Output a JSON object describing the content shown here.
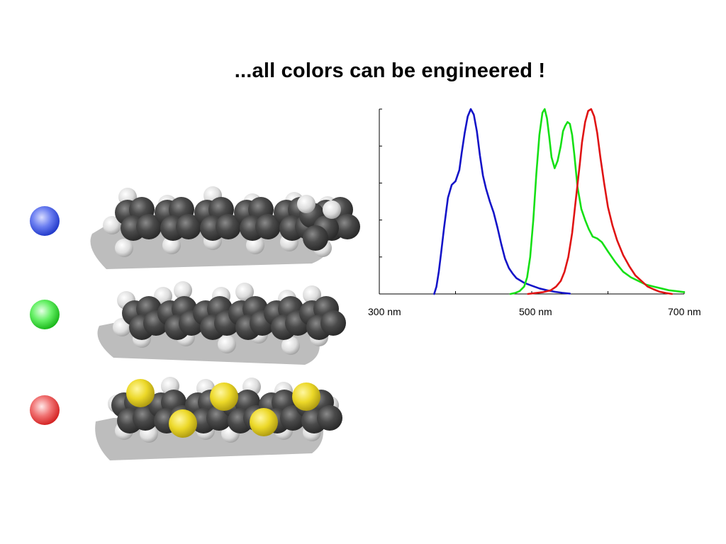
{
  "slide": {
    "title": "...all colors can be engineered !"
  },
  "colors": {
    "blue": "#1414c8",
    "green": "#16e016",
    "red": "#e01414",
    "sulfur": "#ecd828",
    "carbon": "#4a4a4a",
    "hydrogen": "#e6e6e6"
  },
  "molecules": [
    {
      "emission_color": "blue",
      "atoms": "carbon-hydrogen"
    },
    {
      "emission_color": "green",
      "atoms": "carbon-hydrogen"
    },
    {
      "emission_color": "red",
      "atoms": "carbon-hydrogen-sulfur"
    }
  ],
  "chart_data": {
    "type": "line",
    "title": "",
    "xlabel": "",
    "ylabel": "",
    "xlim": [
      300,
      700
    ],
    "ylim": [
      0,
      1
    ],
    "x_ticks": [
      300,
      400,
      500,
      600,
      700
    ],
    "x_tick_labels": [
      {
        "value": 300,
        "text": "300 nm"
      },
      {
        "value": 500,
        "text": "500 nm"
      },
      {
        "value": 700,
        "text": "700 nm"
      }
    ],
    "grid": false,
    "legend": "none",
    "series": [
      {
        "color": "#1414c8",
        "x": [
          372,
          375,
          378,
          381,
          385,
          390,
          395,
          400,
          405,
          408,
          412,
          416,
          420,
          424,
          428,
          432,
          436,
          440,
          445,
          450,
          455,
          460,
          465,
          470,
          475,
          480,
          490,
          500,
          510,
          520,
          530,
          540,
          550
        ],
        "y": [
          0.0,
          0.04,
          0.12,
          0.22,
          0.36,
          0.52,
          0.59,
          0.61,
          0.67,
          0.76,
          0.87,
          0.96,
          1.0,
          0.97,
          0.88,
          0.75,
          0.64,
          0.57,
          0.5,
          0.44,
          0.36,
          0.27,
          0.19,
          0.14,
          0.11,
          0.085,
          0.06,
          0.045,
          0.03,
          0.02,
          0.012,
          0.006,
          0.002
        ]
      },
      {
        "color": "#16e016",
        "x": [
          472,
          478,
          484,
          490,
          494,
          498,
          502,
          506,
          510,
          514,
          517,
          520,
          523,
          526,
          530,
          534,
          538,
          541,
          544,
          547,
          550,
          553,
          556,
          560,
          565,
          570,
          575,
          580,
          586,
          592,
          600,
          610,
          620,
          630,
          640,
          650,
          660,
          670,
          680,
          690,
          700
        ],
        "y": [
          0.0,
          0.005,
          0.015,
          0.04,
          0.09,
          0.2,
          0.4,
          0.65,
          0.86,
          0.98,
          1.0,
          0.95,
          0.85,
          0.74,
          0.68,
          0.72,
          0.8,
          0.88,
          0.91,
          0.93,
          0.92,
          0.86,
          0.75,
          0.58,
          0.46,
          0.4,
          0.35,
          0.31,
          0.3,
          0.28,
          0.23,
          0.17,
          0.12,
          0.09,
          0.07,
          0.05,
          0.04,
          0.03,
          0.02,
          0.015,
          0.01
        ]
      },
      {
        "color": "#e01414",
        "x": [
          495,
          505,
          515,
          525,
          532,
          538,
          543,
          548,
          553,
          557,
          560,
          563,
          566,
          570,
          574,
          578,
          582,
          586,
          590,
          595,
          600,
          606,
          612,
          620,
          628,
          636,
          644,
          652,
          660,
          668,
          676,
          684
        ],
        "y": [
          0.0,
          0.005,
          0.01,
          0.02,
          0.04,
          0.07,
          0.12,
          0.2,
          0.33,
          0.48,
          0.59,
          0.7,
          0.82,
          0.93,
          0.99,
          1.0,
          0.96,
          0.87,
          0.74,
          0.6,
          0.47,
          0.37,
          0.29,
          0.21,
          0.15,
          0.1,
          0.07,
          0.04,
          0.025,
          0.012,
          0.005,
          0.0
        ]
      }
    ]
  }
}
